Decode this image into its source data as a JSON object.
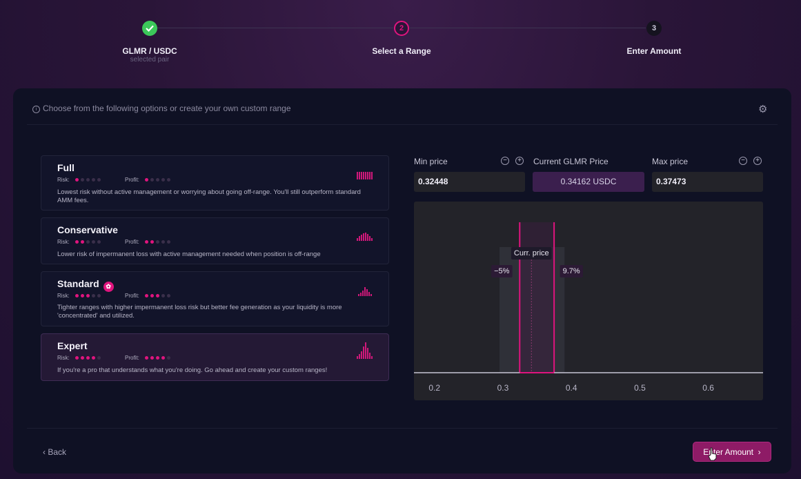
{
  "stepper": {
    "steps": [
      {
        "number": "✓",
        "title": "GLMR / USDC",
        "subtitle": "selected pair",
        "state": "done"
      },
      {
        "number": "2",
        "title": "Select a Range",
        "subtitle": "",
        "state": "active"
      },
      {
        "number": "3",
        "title": "Enter Amount",
        "subtitle": "",
        "state": "upcoming"
      }
    ]
  },
  "hint": "Choose from the following options or create your own custom range",
  "options": [
    {
      "title": "Full",
      "risk_label": "Risk:",
      "profit_label": "Profit:",
      "risk": 1,
      "profit": 1,
      "description": "Lowest risk without active management or worrying about going off-range. You'll still outperform standard AMM fees."
    },
    {
      "title": "Conservative",
      "risk_label": "Risk:",
      "profit_label": "Profit:",
      "risk": 2,
      "profit": 2,
      "description": "Lower risk of impermanent loss with active management needed when position is off-range"
    },
    {
      "title": "Standard",
      "risk_label": "Risk:",
      "profit_label": "Profit:",
      "risk": 3,
      "profit": 3,
      "description": "Tighter ranges with higher impermanent loss risk but better fee generation as your liquidity is more 'concentrated' and utilized."
    },
    {
      "title": "Expert",
      "risk_label": "Risk:",
      "profit_label": "Profit:",
      "risk": 4,
      "profit": 4,
      "description": "If you're a pro that understands what you're doing. Go ahead and create your custom ranges!"
    }
  ],
  "price": {
    "min_label": "Min price",
    "min_value": "0.32448",
    "current_label": "Current GLMR Price",
    "current_value": "0.34162 USDC",
    "max_label": "Max price",
    "max_value": "0.37473",
    "minus": "−",
    "plus": "+"
  },
  "chart_data": {
    "type": "area",
    "x_ticks": [
      "0.2",
      "0.3",
      "0.4",
      "0.5",
      "0.6"
    ],
    "xlim": [
      0.17,
      0.68
    ],
    "current_price": 0.34162,
    "range_min": 0.32448,
    "range_max": 0.37473,
    "liquidity_band": [
      0.295,
      0.39
    ],
    "current_label": "Curr. price",
    "min_pct_label": "−5%",
    "max_pct_label": "9.7%"
  },
  "footer": {
    "back_label": "Back",
    "enter_label": "Enter Amount"
  },
  "colors": {
    "accent": "#e0147e",
    "success": "#3cc85a",
    "button": "#8e1b66"
  }
}
